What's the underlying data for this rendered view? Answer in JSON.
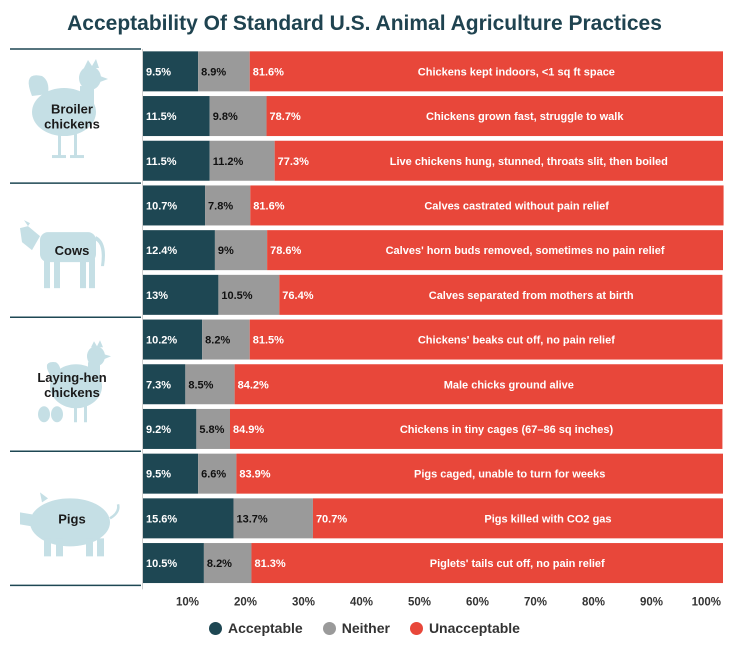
{
  "chart_data": {
    "type": "bar",
    "stacked": true,
    "orientation": "horizontal",
    "title": "Acceptability Of Standard U.S. Animal Agriculture Practices",
    "xlabel": "",
    "ylabel": "",
    "xlim": [
      0,
      100
    ],
    "x_tick_labels": [
      "10%",
      "20%",
      "30%",
      "40%",
      "50%",
      "60%",
      "70%",
      "80%",
      "90%",
      "100%"
    ],
    "series_names": [
      "Acceptable",
      "Neither",
      "Unacceptable"
    ],
    "colors": {
      "acceptable": "#1e4753",
      "neither": "#9a9a9a",
      "unacceptable": "#e8473a",
      "icon": "#c5dfe5",
      "title": "#1f4350",
      "group_line": "#1e4753"
    },
    "groups": [
      {
        "name": "Broiler chickens",
        "label_lines": [
          "Broiler",
          "chickens"
        ],
        "icon": "rooster-icon",
        "rows": [
          {
            "practice": "Chickens kept indoors, <1 sq ft space",
            "values": [
              9.5,
              8.9,
              81.6
            ],
            "labels": [
              "9.5%",
              "8.9%",
              "81.6%"
            ]
          },
          {
            "practice": "Chickens grown fast, struggle to walk",
            "values": [
              11.5,
              9.8,
              78.7
            ],
            "labels": [
              "11.5%",
              "9.8%",
              "78.7%"
            ]
          },
          {
            "practice": "Live chickens hung, stunned, throats slit, then boiled",
            "values": [
              11.5,
              11.2,
              77.3
            ],
            "labels": [
              "11.5%",
              "11.2%",
              "77.3%"
            ]
          }
        ]
      },
      {
        "name": "Cows",
        "label_lines": [
          "Cows"
        ],
        "icon": "cow-icon",
        "rows": [
          {
            "practice": "Calves castrated without pain relief",
            "values": [
              10.7,
              7.8,
              81.6
            ],
            "labels": [
              "10.7%",
              "7.8%",
              "81.6%"
            ]
          },
          {
            "practice": "Calves' horn buds removed, sometimes no pain relief",
            "values": [
              12.4,
              9,
              78.6
            ],
            "labels": [
              "12.4%",
              "9%",
              "78.6%"
            ]
          },
          {
            "practice": "Calves separated from mothers at birth",
            "values": [
              13,
              10.5,
              76.4
            ],
            "labels": [
              "13%",
              "10.5%",
              "76.4%"
            ]
          }
        ]
      },
      {
        "name": "Laying-hen chickens",
        "label_lines": [
          "Laying-hen",
          "chickens"
        ],
        "icon": "hen-icon",
        "rows": [
          {
            "practice": "Chickens' beaks cut off, no pain relief",
            "values": [
              10.2,
              8.2,
              81.5
            ],
            "labels": [
              "10.2%",
              "8.2%",
              "81.5%"
            ]
          },
          {
            "practice": "Male chicks ground alive",
            "values": [
              7.3,
              8.5,
              84.2
            ],
            "labels": [
              "7.3%",
              "8.5%",
              "84.2%"
            ]
          },
          {
            "practice": "Chickens in tiny cages (67–86 sq inches)",
            "values": [
              9.2,
              5.8,
              84.9
            ],
            "labels": [
              "9.2%",
              "5.8%",
              "84.9%"
            ]
          }
        ]
      },
      {
        "name": "Pigs",
        "label_lines": [
          "Pigs"
        ],
        "icon": "pig-icon",
        "rows": [
          {
            "practice": "Pigs caged, unable to turn for weeks",
            "values": [
              9.5,
              6.6,
              83.9
            ],
            "labels": [
              "9.5%",
              "6.6%",
              "83.9%"
            ]
          },
          {
            "practice": "Pigs killed with CO2 gas",
            "values": [
              15.6,
              13.7,
              70.7
            ],
            "labels": [
              "15.6%",
              "13.7%",
              "70.7%"
            ]
          },
          {
            "practice": "Piglets' tails cut off, no pain relief",
            "values": [
              10.5,
              8.2,
              81.3
            ],
            "labels": [
              "10.5%",
              "8.2%",
              "81.3%"
            ]
          }
        ]
      }
    ],
    "legend": [
      "Acceptable",
      "Neither",
      "Unacceptable"
    ],
    "legend_position": "bottom"
  }
}
